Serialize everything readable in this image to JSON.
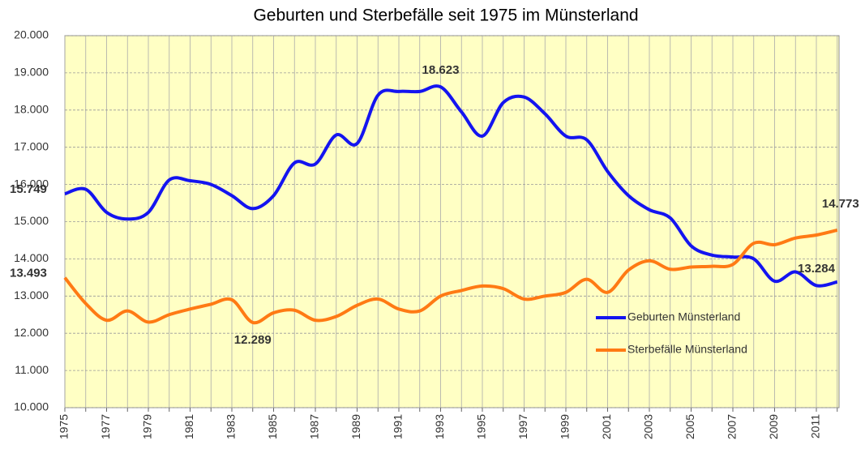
{
  "chart_data": {
    "type": "line",
    "title": "Geburten und Sterbefälle seit 1975 im Münsterland",
    "categories": [
      "1975",
      null,
      "1977",
      null,
      "1979",
      null,
      "1981",
      null,
      "1983",
      null,
      "1985",
      null,
      "1987",
      null,
      "1989",
      null,
      "1991",
      null,
      "1993",
      null,
      "1995",
      null,
      "1997",
      null,
      "1999",
      null,
      "2001",
      null,
      "2003",
      null,
      "2005",
      null,
      "2007",
      null,
      "2009",
      null,
      "2011",
      null
    ],
    "series": [
      {
        "name": "Geburten Münsterland",
        "color": "#1414f0",
        "label_color": "#14147a",
        "values": [
          15749,
          15870,
          15250,
          15070,
          15250,
          16120,
          16100,
          16000,
          15700,
          15350,
          15700,
          16580,
          16550,
          17330,
          17100,
          18400,
          18500,
          18500,
          18623,
          17950,
          17300,
          18200,
          18350,
          17900,
          17300,
          17200,
          16350,
          15700,
          15320,
          15100,
          14350,
          14100,
          14050,
          14000,
          13400,
          13650,
          13284,
          13380
        ],
        "value_labels": [
          "15.749",
          null,
          null,
          null,
          null,
          null,
          null,
          null,
          null,
          null,
          null,
          null,
          null,
          null,
          null,
          null,
          null,
          null,
          "18.623",
          null,
          null,
          null,
          null,
          null,
          null,
          null,
          null,
          null,
          null,
          null,
          null,
          null,
          null,
          null,
          null,
          null,
          "13.284",
          null
        ]
      },
      {
        "name": "Sterbefälle Münsterland",
        "color": "#ff7a14",
        "label_color": "#9c3c0a",
        "values": [
          13493,
          12800,
          12350,
          12600,
          12300,
          12500,
          12650,
          12780,
          12900,
          12289,
          12550,
          12620,
          12350,
          12450,
          12750,
          12920,
          12650,
          12600,
          13000,
          13150,
          13270,
          13200,
          12920,
          13000,
          13100,
          13450,
          13100,
          13700,
          13950,
          13720,
          13780,
          13800,
          13850,
          14420,
          14380,
          14560,
          14640,
          14773
        ],
        "value_labels": [
          "13.493",
          null,
          null,
          null,
          null,
          null,
          null,
          null,
          null,
          "12.289",
          null,
          null,
          null,
          null,
          null,
          null,
          null,
          null,
          null,
          null,
          null,
          null,
          null,
          null,
          null,
          null,
          null,
          null,
          null,
          null,
          null,
          null,
          null,
          null,
          null,
          null,
          null,
          "14.773"
        ]
      }
    ],
    "ylim": [
      10000,
      20000
    ],
    "yticks": [
      {
        "value": 10000,
        "label": "10.000"
      },
      {
        "value": 11000,
        "label": "11.000"
      },
      {
        "value": 12000,
        "label": "12.000"
      },
      {
        "value": 13000,
        "label": "13.000"
      },
      {
        "value": 14000,
        "label": "14.000"
      },
      {
        "value": 15000,
        "label": "15.000"
      },
      {
        "value": 16000,
        "label": "16.000"
      },
      {
        "value": 17000,
        "label": "17.000"
      },
      {
        "value": 18000,
        "label": "18.000"
      },
      {
        "value": 19000,
        "label": "19.000"
      },
      {
        "value": 20000,
        "label": "20.000"
      }
    ],
    "grid": true,
    "background": "#ffffc4"
  }
}
